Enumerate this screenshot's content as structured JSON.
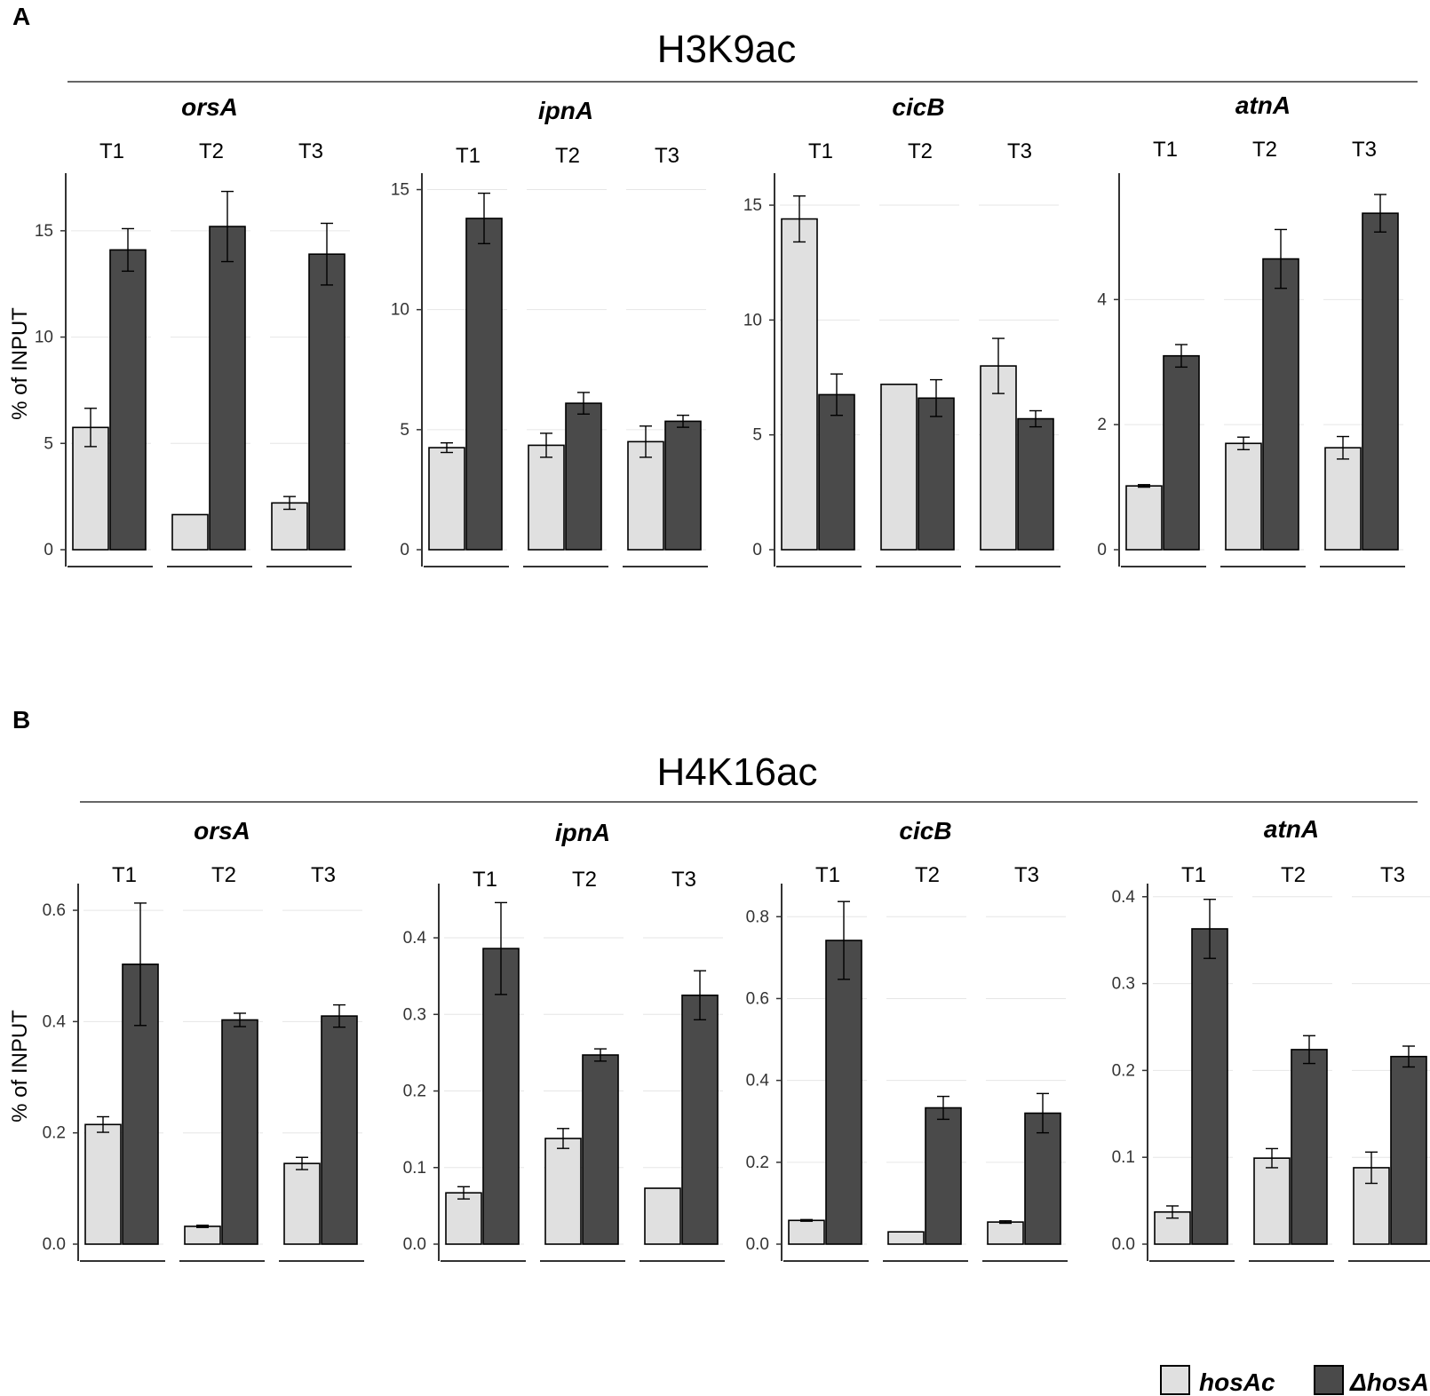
{
  "panels": [
    {
      "letter": "A",
      "title": "H3K9ac"
    },
    {
      "letter": "B",
      "title": "H4K16ac"
    }
  ],
  "legend": {
    "entries": [
      {
        "label": "hosAc",
        "color": "#e0e0e0"
      },
      {
        "label": "ΔhosA",
        "color": "#4a4a4a"
      }
    ]
  },
  "colors": {
    "hosAc": "#e0e0e0",
    "deltaHosA": "#4a4a4a",
    "grid": "#e6e6e6",
    "axis": "#333333"
  },
  "chart_data": [
    {
      "type": "bar",
      "panel": "A",
      "mark": "H3K9ac",
      "gene": "orsA",
      "ylabel": "% of INPUT",
      "ylim": [
        0,
        17.5
      ],
      "yticks": [
        0,
        5,
        10,
        15
      ],
      "categories": [
        "T1",
        "T2",
        "T3"
      ],
      "series": [
        {
          "name": "hosAc",
          "values": [
            5.75,
            1.65,
            2.2
          ],
          "errors": [
            0.9,
            0.0,
            0.3
          ]
        },
        {
          "name": "ΔhosA",
          "values": [
            14.1,
            15.2,
            13.9
          ],
          "errors": [
            1.0,
            1.65,
            1.45
          ]
        }
      ]
    },
    {
      "type": "bar",
      "panel": "A",
      "mark": "H3K9ac",
      "gene": "ipnA",
      "ylabel": "",
      "ylim": [
        0,
        15.5
      ],
      "yticks": [
        0,
        5,
        10,
        15
      ],
      "categories": [
        "T1",
        "T2",
        "T3"
      ],
      "series": [
        {
          "name": "hosAc",
          "values": [
            4.25,
            4.35,
            4.5
          ],
          "errors": [
            0.2,
            0.5,
            0.65
          ]
        },
        {
          "name": "ΔhosA",
          "values": [
            13.8,
            6.1,
            5.35
          ],
          "errors": [
            1.05,
            0.45,
            0.25
          ]
        }
      ]
    },
    {
      "type": "bar",
      "panel": "A",
      "mark": "H3K9ac",
      "gene": "cicB",
      "ylabel": "",
      "ylim": [
        0,
        16.2
      ],
      "yticks": [
        0,
        5,
        10,
        15
      ],
      "categories": [
        "T1",
        "T2",
        "T3"
      ],
      "series": [
        {
          "name": "hosAc",
          "values": [
            14.4,
            7.2,
            8.0
          ],
          "errors": [
            1.0,
            0.0,
            1.2
          ]
        },
        {
          "name": "ΔhosA",
          "values": [
            6.75,
            6.6,
            5.7
          ],
          "errors": [
            0.9,
            0.8,
            0.35
          ]
        }
      ]
    },
    {
      "type": "bar",
      "panel": "A",
      "mark": "H3K9ac",
      "gene": "atnA",
      "ylabel": "",
      "ylim": [
        0,
        5.95
      ],
      "yticks": [
        0,
        2,
        4
      ],
      "categories": [
        "T1",
        "T2",
        "T3"
      ],
      "series": [
        {
          "name": "hosAc",
          "values": [
            1.02,
            1.7,
            1.63
          ],
          "errors": [
            0.02,
            0.1,
            0.18
          ]
        },
        {
          "name": "ΔhosA",
          "values": [
            3.1,
            4.65,
            5.38
          ],
          "errors": [
            0.18,
            0.47,
            0.3
          ]
        }
      ]
    },
    {
      "type": "bar",
      "panel": "B",
      "mark": "H4K16ac",
      "gene": "orsA",
      "ylabel": "% of INPUT",
      "ylim": [
        0,
        0.64
      ],
      "yticks": [
        0.0,
        0.2,
        0.4,
        0.6
      ],
      "categories": [
        "T1",
        "T2",
        "T3"
      ],
      "series": [
        {
          "name": "hosAc",
          "values": [
            0.215,
            0.032,
            0.145
          ],
          "errors": [
            0.014,
            0.002,
            0.011
          ]
        },
        {
          "name": "ΔhosA",
          "values": [
            0.503,
            0.403,
            0.41
          ],
          "errors": [
            0.11,
            0.012,
            0.02
          ]
        }
      ]
    },
    {
      "type": "bar",
      "panel": "B",
      "mark": "H4K16ac",
      "gene": "ipnA",
      "ylabel": "",
      "ylim": [
        0,
        0.465
      ],
      "yticks": [
        0.0,
        0.1,
        0.2,
        0.3,
        0.4
      ],
      "categories": [
        "T1",
        "T2",
        "T3"
      ],
      "series": [
        {
          "name": "hosAc",
          "values": [
            0.067,
            0.138,
            0.073
          ],
          "errors": [
            0.008,
            0.013,
            0.0
          ]
        },
        {
          "name": "ΔhosA",
          "values": [
            0.386,
            0.247,
            0.325
          ],
          "errors": [
            0.06,
            0.008,
            0.032
          ]
        }
      ]
    },
    {
      "type": "bar",
      "panel": "B",
      "mark": "H4K16ac",
      "gene": "cicB",
      "ylabel": "",
      "ylim": [
        0,
        0.87
      ],
      "yticks": [
        0.0,
        0.2,
        0.4,
        0.6,
        0.8
      ],
      "categories": [
        "T1",
        "T2",
        "T3"
      ],
      "series": [
        {
          "name": "hosAc",
          "values": [
            0.058,
            0.03,
            0.054
          ],
          "errors": [
            0.002,
            0.0,
            0.003
          ]
        },
        {
          "name": "ΔhosA",
          "values": [
            0.742,
            0.333,
            0.32
          ],
          "errors": [
            0.095,
            0.028,
            0.048
          ]
        }
      ]
    },
    {
      "type": "bar",
      "panel": "B",
      "mark": "H4K16ac",
      "gene": "atnA",
      "ylabel": "",
      "ylim": [
        0,
        0.41
      ],
      "yticks": [
        0.0,
        0.1,
        0.2,
        0.3,
        0.4
      ],
      "categories": [
        "T1",
        "T2",
        "T3"
      ],
      "series": [
        {
          "name": "hosAc",
          "values": [
            0.037,
            0.099,
            0.088
          ],
          "errors": [
            0.007,
            0.011,
            0.018
          ]
        },
        {
          "name": "ΔhosA",
          "values": [
            0.363,
            0.224,
            0.216
          ],
          "errors": [
            0.034,
            0.016,
            0.012
          ]
        }
      ]
    }
  ]
}
